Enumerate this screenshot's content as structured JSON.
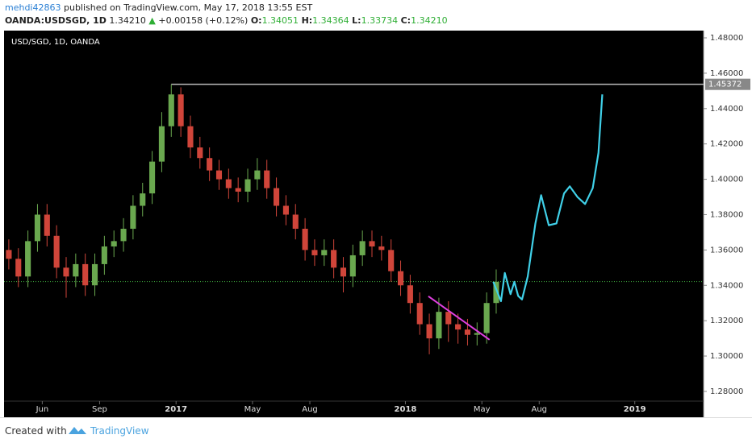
{
  "header": {
    "user": "mehdi42863",
    "published": "published on TradingView.com, May 17, 2018 13:55 EST",
    "symbol": "OANDA:USDSGD, 1D",
    "last": "1.34210",
    "change": "+0.00158 (+0.12%)",
    "o_label": "O:",
    "o": "1.34051",
    "h_label": "H:",
    "h": "1.34364",
    "l_label": "L:",
    "l": "1.33734",
    "c_label": "C:",
    "c": "1.34210"
  },
  "footer": {
    "created": "Created with",
    "brand": "TradingView"
  },
  "chart_data": {
    "type": "candlestick",
    "title": "USD/SGD, 1D, OANDA",
    "up_color": "#6aa84f",
    "down_color": "#d0453a",
    "x": [
      3.25,
      3.75,
      4.25,
      4.75,
      5.25,
      5.75,
      6.25,
      6.75,
      7.25,
      7.75,
      8.25,
      8.75,
      9.25,
      9.75,
      10.25,
      10.75,
      11.25,
      11.75,
      12.25,
      12.75,
      13.25,
      13.75,
      14.25,
      14.75,
      15.25,
      15.75,
      16.25,
      16.75,
      17.25,
      17.75,
      18.25,
      18.75,
      19.25,
      19.75,
      20.25,
      20.75,
      21.25,
      21.75,
      22.25,
      22.75,
      23.25,
      23.75,
      24.25,
      24.75,
      25.25,
      25.75,
      26.25,
      26.75,
      27.25,
      27.75,
      28.25,
      28.75
    ],
    "open": [
      1.36,
      1.355,
      1.345,
      1.365,
      1.38,
      1.368,
      1.35,
      1.345,
      1.352,
      1.34,
      1.352,
      1.362,
      1.365,
      1.372,
      1.385,
      1.392,
      1.41,
      1.43,
      1.448,
      1.43,
      1.418,
      1.412,
      1.405,
      1.4,
      1.395,
      1.393,
      1.4,
      1.405,
      1.395,
      1.385,
      1.38,
      1.372,
      1.36,
      1.357,
      1.36,
      1.35,
      1.345,
      1.357,
      1.365,
      1.362,
      1.36,
      1.348,
      1.34,
      1.33,
      1.318,
      1.31,
      1.325,
      1.318,
      1.315,
      1.312,
      1.313,
      1.33
    ],
    "high": [
      1.366,
      1.361,
      1.371,
      1.386,
      1.386,
      1.374,
      1.356,
      1.358,
      1.358,
      1.358,
      1.368,
      1.371,
      1.378,
      1.391,
      1.398,
      1.416,
      1.438,
      1.4537,
      1.452,
      1.436,
      1.424,
      1.418,
      1.411,
      1.406,
      1.401,
      1.406,
      1.412,
      1.411,
      1.401,
      1.391,
      1.386,
      1.378,
      1.366,
      1.366,
      1.366,
      1.356,
      1.363,
      1.371,
      1.371,
      1.368,
      1.366,
      1.354,
      1.346,
      1.336,
      1.324,
      1.333,
      1.331,
      1.324,
      1.321,
      1.319,
      1.336,
      1.349
    ],
    "low": [
      1.349,
      1.339,
      1.339,
      1.359,
      1.362,
      1.344,
      1.333,
      1.339,
      1.334,
      1.334,
      1.346,
      1.356,
      1.359,
      1.366,
      1.379,
      1.386,
      1.404,
      1.424,
      1.424,
      1.412,
      1.406,
      1.399,
      1.394,
      1.389,
      1.387,
      1.387,
      1.394,
      1.389,
      1.379,
      1.374,
      1.366,
      1.354,
      1.351,
      1.351,
      1.344,
      1.336,
      1.339,
      1.351,
      1.356,
      1.354,
      1.342,
      1.334,
      1.324,
      1.312,
      1.301,
      1.304,
      1.308,
      1.307,
      1.306,
      1.306,
      1.307,
      1.324
    ],
    "close": [
      1.355,
      1.345,
      1.365,
      1.38,
      1.368,
      1.35,
      1.345,
      1.352,
      1.34,
      1.352,
      1.362,
      1.365,
      1.372,
      1.385,
      1.392,
      1.41,
      1.43,
      1.448,
      1.43,
      1.418,
      1.412,
      1.405,
      1.4,
      1.395,
      1.393,
      1.4,
      1.405,
      1.395,
      1.385,
      1.38,
      1.372,
      1.36,
      1.357,
      1.36,
      1.35,
      1.345,
      1.357,
      1.365,
      1.362,
      1.36,
      1.348,
      1.34,
      1.33,
      1.318,
      1.31,
      1.325,
      1.318,
      1.315,
      1.312,
      1.313,
      1.33,
      1.342
    ],
    "forecast": {
      "color": "#40d0e8",
      "x": [
        28.6,
        29.0,
        29.2,
        29.5,
        29.7,
        29.9,
        30.1,
        30.4,
        30.8,
        31.1,
        31.5,
        31.9,
        32.3,
        32.6,
        33.0,
        33.4,
        33.8,
        34.1,
        34.3
      ],
      "values": [
        1.342,
        1.331,
        1.347,
        1.335,
        1.342,
        1.334,
        1.332,
        1.345,
        1.375,
        1.391,
        1.374,
        1.375,
        1.392,
        1.396,
        1.39,
        1.386,
        1.395,
        1.415,
        1.448
      ]
    },
    "trendline": {
      "color": "#e040e0",
      "x": [
        25.2,
        28.4
      ],
      "values": [
        1.3338,
        1.3092
      ]
    },
    "resistance": 1.45372,
    "price_line": 1.3421,
    "xlim": [
      3.0,
      39.6
    ],
    "ylim": [
      1.2663,
      1.4841
    ],
    "xticks": [
      {
        "value": 5,
        "label": "Jun"
      },
      {
        "value": 8,
        "label": "Sep"
      },
      {
        "value": 12,
        "label": "2017"
      },
      {
        "value": 16,
        "label": "May"
      },
      {
        "value": 19,
        "label": "Aug"
      },
      {
        "value": 24,
        "label": "2018"
      },
      {
        "value": 28,
        "label": "May"
      },
      {
        "value": 31,
        "label": "Aug"
      },
      {
        "value": 36,
        "label": "2019"
      }
    ],
    "yticks": [
      {
        "value": 1.28,
        "label": "1.28000"
      },
      {
        "value": 1.3,
        "label": "1.30000"
      },
      {
        "value": 1.32,
        "label": "1.32000"
      },
      {
        "value": 1.34,
        "label": "1.34000"
      },
      {
        "value": 1.36,
        "label": "1.36000"
      },
      {
        "value": 1.38,
        "label": "1.38000"
      },
      {
        "value": 1.4,
        "label": "1.40000"
      },
      {
        "value": 1.42,
        "label": "1.42000"
      },
      {
        "value": 1.44,
        "label": "1.44000"
      },
      {
        "value": 1.46,
        "label": "1.46000"
      },
      {
        "value": 1.48,
        "label": "1.48000"
      }
    ]
  }
}
